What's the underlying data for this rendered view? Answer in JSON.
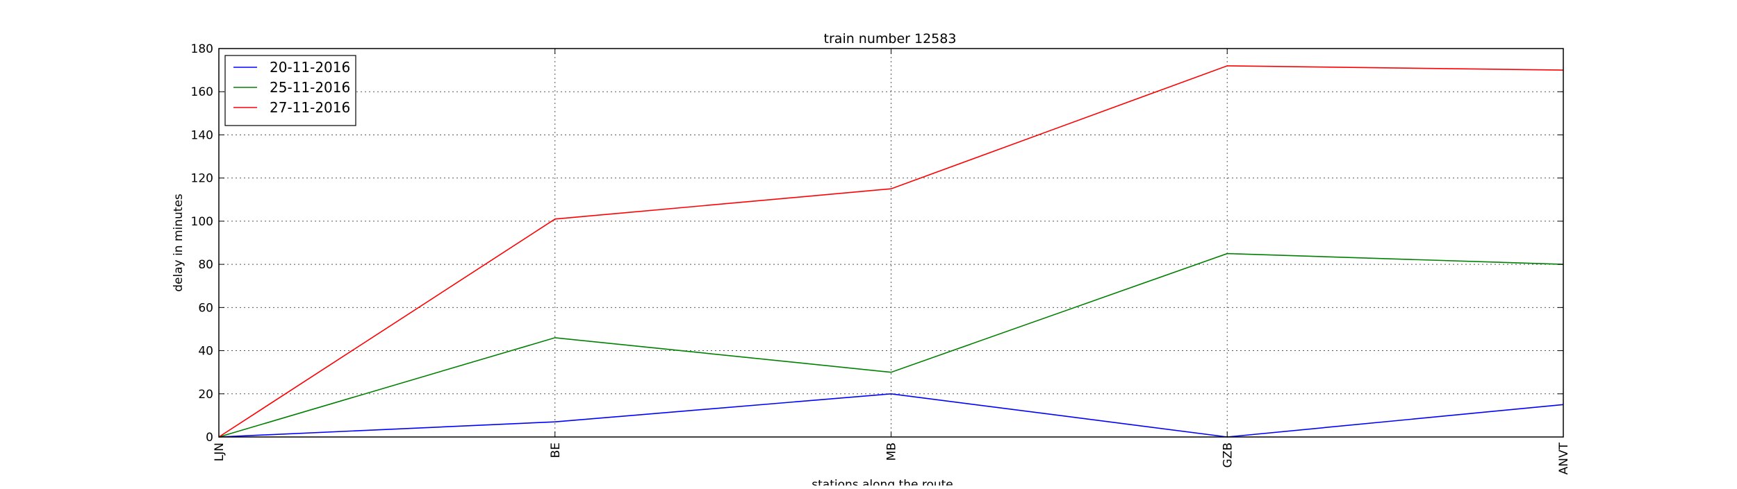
{
  "chart_data": {
    "type": "line",
    "title": "train number 12583",
    "xlabel": "stations along the route",
    "ylabel": "delay in minutes",
    "categories": [
      "LJN",
      "BE",
      "MB",
      "GZB",
      "ANVT"
    ],
    "ylim": [
      0,
      180
    ],
    "yticks": [
      0,
      20,
      40,
      60,
      80,
      100,
      120,
      140,
      160,
      180
    ],
    "grid": true,
    "legend_position": "top-left",
    "series": [
      {
        "name": "20-11-2016",
        "color": "#0000ff",
        "values": [
          0,
          7,
          20,
          0,
          15
        ]
      },
      {
        "name": "25-11-2016",
        "color": "#008000",
        "values": [
          0,
          46,
          30,
          85,
          80
        ]
      },
      {
        "name": "27-11-2016",
        "color": "#ff0000",
        "values": [
          0,
          101,
          115,
          172,
          170
        ]
      }
    ]
  }
}
